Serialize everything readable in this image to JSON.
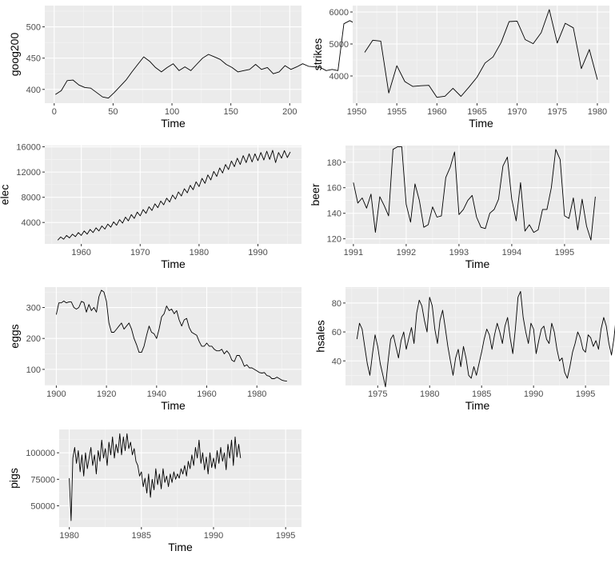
{
  "figure": {
    "background": "#ffffff",
    "panel_background": "#ebebeb",
    "grid_major": "#ffffff",
    "grid_minor": "#f5f5f5",
    "line_color": "#000000"
  },
  "chart_data": [
    {
      "type": "line",
      "xlabel": "Time",
      "ylabel": "goog200",
      "xlim": [
        -8,
        210
      ],
      "ylim": [
        378,
        534
      ],
      "xticks": [
        0,
        50,
        100,
        150,
        200
      ],
      "yticks": [
        400,
        450,
        500
      ],
      "series": [
        {
          "x_start": 1,
          "x_step": 5,
          "y": [
            392,
            398,
            414,
            415,
            407,
            403,
            402,
            395,
            388,
            386,
            395,
            405,
            415,
            428,
            440,
            452,
            445,
            435,
            428,
            435,
            441,
            430,
            436,
            430,
            440,
            450,
            456,
            452,
            448,
            440,
            435,
            428,
            430,
            432,
            440,
            432,
            435,
            425,
            428,
            438,
            432,
            436,
            441,
            437,
            436,
            435,
            430,
            432,
            430,
            505,
            510,
            505,
            508,
            512,
            515,
            510,
            518,
            522,
            526,
            528,
            529
          ]
        }
      ]
    },
    {
      "type": "line",
      "xlabel": "Time",
      "ylabel": "strikes",
      "xlim": [
        1949.5,
        1981.5
      ],
      "ylim": [
        3150,
        6200
      ],
      "xticks": [
        1950,
        1955,
        1960,
        1965,
        1970,
        1975,
        1980
      ],
      "yticks": [
        4000,
        5000,
        6000
      ],
      "series": [
        {
          "x_start": 1951,
          "x_step": 1,
          "y": [
            4737,
            5117,
            5091,
            3468,
            4320,
            3825,
            3673,
            3694,
            3708,
            3333,
            3367,
            3614,
            3362,
            3655,
            3963,
            4405,
            4595,
            5045,
            5700,
            5716,
            5138,
            5010,
            5353,
            6074,
            5031,
            5648,
            5506,
            4230,
            4827,
            3885
          ]
        }
      ]
    },
    {
      "type": "line",
      "xlabel": "Time",
      "ylabel": "elec",
      "xlim": [
        1953.8,
        1997.4
      ],
      "ylim": [
        600,
        16200
      ],
      "xticks": [
        1960,
        1970,
        1980,
        1990
      ],
      "yticks": [
        4000,
        8000,
        12000,
        16000
      ],
      "series": [
        {
          "x_start": 1956,
          "x_step": 0.5,
          "y": [
            1200,
            1700,
            1350,
            1950,
            1550,
            2150,
            1750,
            2400,
            1950,
            2650,
            2150,
            2900,
            2400,
            3150,
            2650,
            3450,
            2950,
            3750,
            3250,
            4100,
            3550,
            4450,
            3900,
            4850,
            4250,
            5250,
            4650,
            5650,
            5050,
            6050,
            5450,
            6500,
            5900,
            6950,
            6350,
            7400,
            6800,
            7850,
            7250,
            8350,
            7700,
            8850,
            8200,
            9350,
            8700,
            9900,
            9200,
            10450,
            9700,
            11000,
            10200,
            11550,
            10750,
            12100,
            11300,
            12650,
            11850,
            13200,
            12400,
            13750,
            12850,
            14200,
            13200,
            14600,
            13500,
            14900,
            13600,
            14900,
            13800,
            15100,
            13900,
            15300,
            14000,
            15450,
            13500,
            15100,
            14200,
            15400,
            14300,
            15200
          ]
        }
      ]
    },
    {
      "type": "line",
      "xlabel": "Time",
      "ylabel": "beer",
      "xlim": [
        1990.85,
        1995.85
      ],
      "ylim": [
        116,
        193
      ],
      "xticks": [
        1991,
        1992,
        1993,
        1994,
        1995
      ],
      "yticks": [
        120,
        140,
        160,
        180
      ],
      "series": [
        {
          "x_start": 1991,
          "x_step": 0.0833333,
          "y": [
            164,
            148,
            152,
            144,
            155,
            125,
            153,
            146,
            138,
            190,
            192,
            192,
            147,
            133,
            163,
            150,
            129,
            131,
            145,
            137,
            138,
            168,
            176,
            188,
            139,
            143,
            150,
            154,
            137,
            129,
            128,
            140,
            143,
            151,
            177,
            184,
            151,
            134,
            164,
            126,
            131,
            125,
            127,
            143,
            143,
            160,
            190,
            182,
            138,
            136,
            152,
            127,
            151,
            130,
            119,
            153
          ]
        }
      ]
    },
    {
      "type": "line",
      "xlabel": "Time",
      "ylabel": "eggs",
      "xlim": [
        1895.4,
        1997.8
      ],
      "ylim": [
        48,
        366
      ],
      "xticks": [
        1900,
        1920,
        1940,
        1960,
        1980
      ],
      "yticks": [
        100,
        200,
        300
      ],
      "series": [
        {
          "x_start": 1900,
          "x_step": 1,
          "y": [
            277,
            315,
            315,
            321,
            315,
            318,
            318,
            300,
            295,
            300,
            320,
            316,
            285,
            310,
            290,
            300,
            285,
            335,
            356,
            350,
            320,
            250,
            220,
            220,
            230,
            240,
            250,
            230,
            240,
            250,
            230,
            200,
            180,
            155,
            155,
            175,
            210,
            240,
            220,
            215,
            200,
            230,
            270,
            280,
            305,
            290,
            295,
            280,
            290,
            260,
            240,
            260,
            265,
            235,
            220,
            215,
            210,
            190,
            175,
            175,
            185,
            175,
            175,
            165,
            160,
            160,
            165,
            150,
            160,
            150,
            130,
            125,
            145,
            145,
            130,
            110,
            115,
            105,
            105,
            100,
            95,
            90,
            88,
            90,
            80,
            78,
            70,
            70,
            75,
            70,
            65,
            63,
            62
          ]
        }
      ]
    },
    {
      "type": "line",
      "xlabel": "Time",
      "ylabel": "hsales",
      "xlim": [
        1971.9,
        1997.3
      ],
      "ylim": [
        23,
        91
      ],
      "xticks": [
        1975,
        1980,
        1985,
        1990,
        1995
      ],
      "yticks": [
        40,
        60,
        80
      ],
      "series": [
        {
          "x_start": 1973,
          "x_step": 0.25,
          "y": [
            55,
            66,
            62,
            50,
            38,
            30,
            45,
            58,
            50,
            38,
            30,
            22,
            40,
            55,
            58,
            50,
            42,
            54,
            60,
            48,
            56,
            63,
            52,
            73,
            82,
            78,
            68,
            60,
            84,
            78,
            62,
            52,
            68,
            75,
            63,
            50,
            40,
            30,
            42,
            48,
            36,
            50,
            42,
            30,
            28,
            36,
            30,
            38,
            46,
            55,
            62,
            58,
            48,
            58,
            66,
            60,
            52,
            64,
            70,
            56,
            45,
            62,
            84,
            88,
            70,
            60,
            52,
            66,
            62,
            45,
            54,
            62,
            64,
            55,
            52,
            66,
            60,
            48,
            40,
            42,
            32,
            28,
            36,
            46,
            52,
            60,
            56,
            48,
            46,
            58,
            56,
            50,
            54,
            48,
            62,
            70,
            64,
            52,
            44,
            56,
            74,
            60,
            44,
            62,
            64,
            50,
            44
          ]
        }
      ]
    },
    {
      "type": "line",
      "xlabel": "Time",
      "ylabel": "pigs",
      "xlim": [
        1979.3,
        1996.1
      ],
      "ylim": [
        30000,
        122000
      ],
      "xticks": [
        1980,
        1985,
        1990,
        1995
      ],
      "yticks": [
        50000,
        75000,
        100000
      ],
      "series": [
        {
          "x_start": 1980,
          "x_step": 0.125,
          "y": [
            76000,
            36000,
            95000,
            105000,
            90000,
            102000,
            82000,
            98000,
            78000,
            100000,
            85000,
            95000,
            105000,
            88000,
            98000,
            80000,
            102000,
            92000,
            112000,
            95000,
            104000,
            88000,
            110000,
            98000,
            115000,
            95000,
            108000,
            100000,
            118000,
            98000,
            115000,
            102000,
            118000,
            104000,
            110000,
            98000,
            104000,
            92000,
            88000,
            78000,
            82000,
            68000,
            76000,
            62000,
            80000,
            58000,
            75000,
            65000,
            85000,
            70000,
            80000,
            66000,
            85000,
            72000,
            78000,
            68000,
            80000,
            72000,
            82000,
            75000,
            80000,
            76000,
            85000,
            80000,
            88000,
            78000,
            92000,
            85000,
            98000,
            88000,
            105000,
            95000,
            112000,
            90000,
            100000,
            84000,
            96000,
            80000,
            100000,
            86000,
            95000,
            85000,
            102000,
            90000,
            105000,
            92000,
            100000,
            84000,
            108000,
            95000,
            112000,
            88000,
            115000,
            96000,
            108000,
            95000
          ]
        }
      ]
    }
  ]
}
